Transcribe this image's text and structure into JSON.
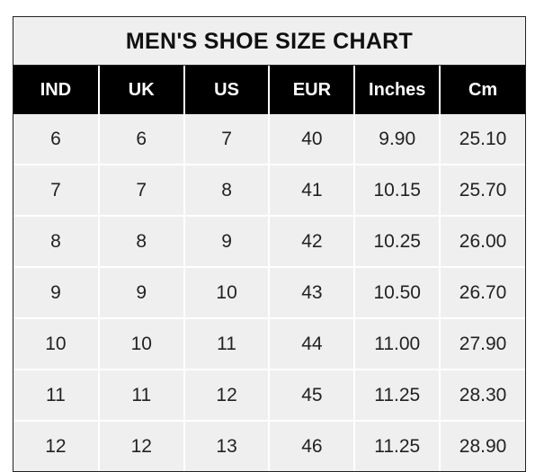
{
  "title": "MEN'S SHOE SIZE CHART",
  "columns": [
    "IND",
    "UK",
    "US",
    "EUR",
    "Inches",
    "Cm"
  ],
  "rows": [
    [
      "6",
      "6",
      "7",
      "40",
      "9.90",
      "25.10"
    ],
    [
      "7",
      "7",
      "8",
      "41",
      "10.15",
      "25.70"
    ],
    [
      "8",
      "8",
      "9",
      "42",
      "10.25",
      "26.00"
    ],
    [
      "9",
      "9",
      "10",
      "43",
      "10.50",
      "26.70"
    ],
    [
      "10",
      "10",
      "11",
      "44",
      "11.00",
      "27.90"
    ],
    [
      "11",
      "11",
      "12",
      "45",
      "11.25",
      "28.30"
    ],
    [
      "12",
      "12",
      "13",
      "46",
      "11.25",
      "28.90"
    ]
  ]
}
